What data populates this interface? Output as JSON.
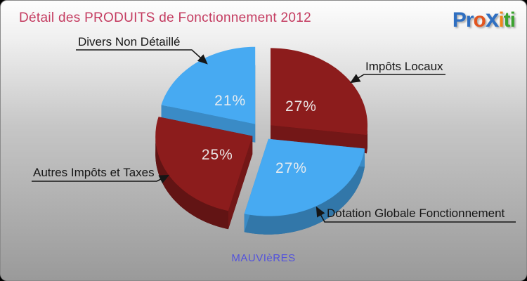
{
  "panel": {
    "title": "Détail des PRODUITS de Fonctionnement 2012",
    "footer": "MAUVIèRES"
  },
  "logo": {
    "name": "Proxiti",
    "letters": [
      {
        "ch": "P",
        "color": "#2f6fc1"
      },
      {
        "ch": "r",
        "color": "#2f6fc1"
      },
      {
        "ch": "o",
        "color": "#e2541e"
      },
      {
        "ch": "x",
        "color": "#2f6fc1"
      },
      {
        "ch": "i",
        "color": "#f0861a"
      },
      {
        "ch": "t",
        "color": "#3ba32f"
      },
      {
        "ch": "i",
        "color": "#3ba32f"
      }
    ]
  },
  "chart_data": {
    "type": "pie",
    "style": "3d-exploded",
    "title": "Détail des PRODUITS de Fonctionnement 2012",
    "unit": "%",
    "start_angle_deg": 0,
    "direction": "clockwise",
    "slices": [
      {
        "label": "Impôts Locaux",
        "value": 27,
        "color": "#8c1c1c"
      },
      {
        "label": "Dotation Globale Fonctionnement",
        "value": 27,
        "color": "#47aaf2"
      },
      {
        "label": "Autres Impôts et Taxes",
        "value": 25,
        "color": "#8c1c1c"
      },
      {
        "label": "Divers Non Détaillé",
        "value": 21,
        "color": "#47aaf2"
      }
    ],
    "percent_label_color": "#efefef",
    "callout_line_color": "#161616"
  }
}
